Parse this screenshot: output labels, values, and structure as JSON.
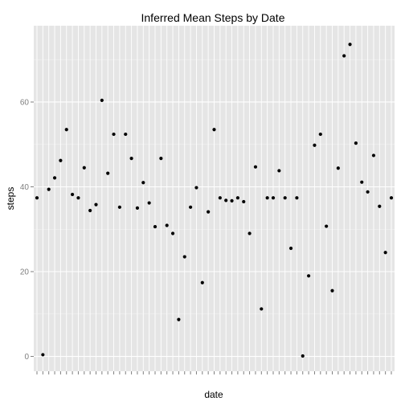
{
  "colors": {
    "panel": "#E5E5E5",
    "grid_major": "#FFFFFF",
    "grid_minor": "#F2F2F2",
    "point": "#000000",
    "tick_text": "#7F7F7F"
  },
  "chart_data": {
    "type": "scatter",
    "title": "Inferred Mean Steps by Date",
    "xlabel": "date",
    "ylabel": "steps",
    "x_axis": "categorical",
    "x_tick_labels": "overlapping date labels, unreadable",
    "ylim": [
      -3.5,
      78
    ],
    "yticks": [
      0,
      20,
      40,
      60
    ],
    "grid": true,
    "legend": "none",
    "x": [
      1,
      2,
      3,
      4,
      5,
      6,
      7,
      8,
      9,
      10,
      11,
      12,
      13,
      14,
      15,
      16,
      17,
      18,
      19,
      20,
      21,
      22,
      23,
      24,
      25,
      26,
      27,
      28,
      29,
      30,
      31,
      32,
      33,
      34,
      35,
      36,
      37,
      38,
      39,
      40,
      41,
      42,
      43,
      44,
      45,
      46,
      47,
      48,
      49,
      50,
      51,
      52,
      53,
      54,
      55,
      56,
      57,
      58,
      59,
      60,
      61
    ],
    "values": [
      37.4,
      0.4,
      39.4,
      42.1,
      46.2,
      53.5,
      38.2,
      37.4,
      44.5,
      34.4,
      35.8,
      60.4,
      43.2,
      52.4,
      35.2,
      52.4,
      46.7,
      35.0,
      41.0,
      36.2,
      30.6,
      46.7,
      30.9,
      29.0,
      8.7,
      23.5,
      35.2,
      39.8,
      17.4,
      34.1,
      53.5,
      37.4,
      36.8,
      36.7,
      37.4,
      36.5,
      29.0,
      44.7,
      11.2,
      37.4,
      37.4,
      43.8,
      37.4,
      25.5,
      37.4,
      0.1,
      19.0,
      49.8,
      52.4,
      30.7,
      15.5,
      44.4,
      70.9,
      73.6,
      50.3,
      41.1,
      38.8,
      47.4,
      35.4,
      24.5,
      37.4
    ]
  }
}
